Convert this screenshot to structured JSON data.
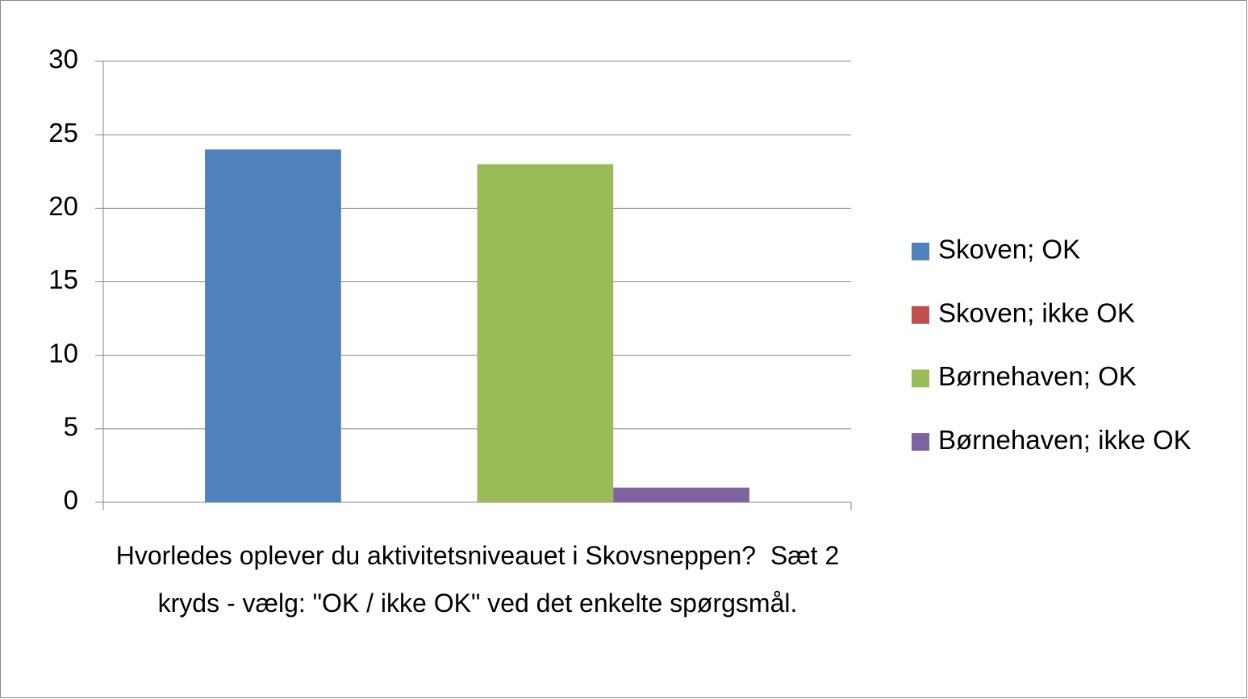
{
  "chart_data": {
    "type": "bar",
    "categories": [
      "Hvorledes oplever du aktivitetsniveauet i Skovsneppen?  Sæt 2 kryds - vælg: \"OK / ikke OK\" ved det enkelte spørgsmål."
    ],
    "series": [
      {
        "name": "Skoven; OK",
        "color": "#4f81bd",
        "values": [
          24
        ]
      },
      {
        "name": "Skoven; ikke OK",
        "color": "#c0504d",
        "values": [
          0
        ]
      },
      {
        "name": "Børnehaven; OK",
        "color": "#9bbb59",
        "values": [
          23
        ]
      },
      {
        "name": "Børnehaven; ikke OK",
        "color": "#8064a2",
        "values": [
          1
        ]
      }
    ],
    "ylim": [
      0,
      30
    ],
    "yticks": [
      0,
      5,
      10,
      15,
      20,
      25,
      30
    ],
    "grid": true,
    "legend": "right"
  }
}
